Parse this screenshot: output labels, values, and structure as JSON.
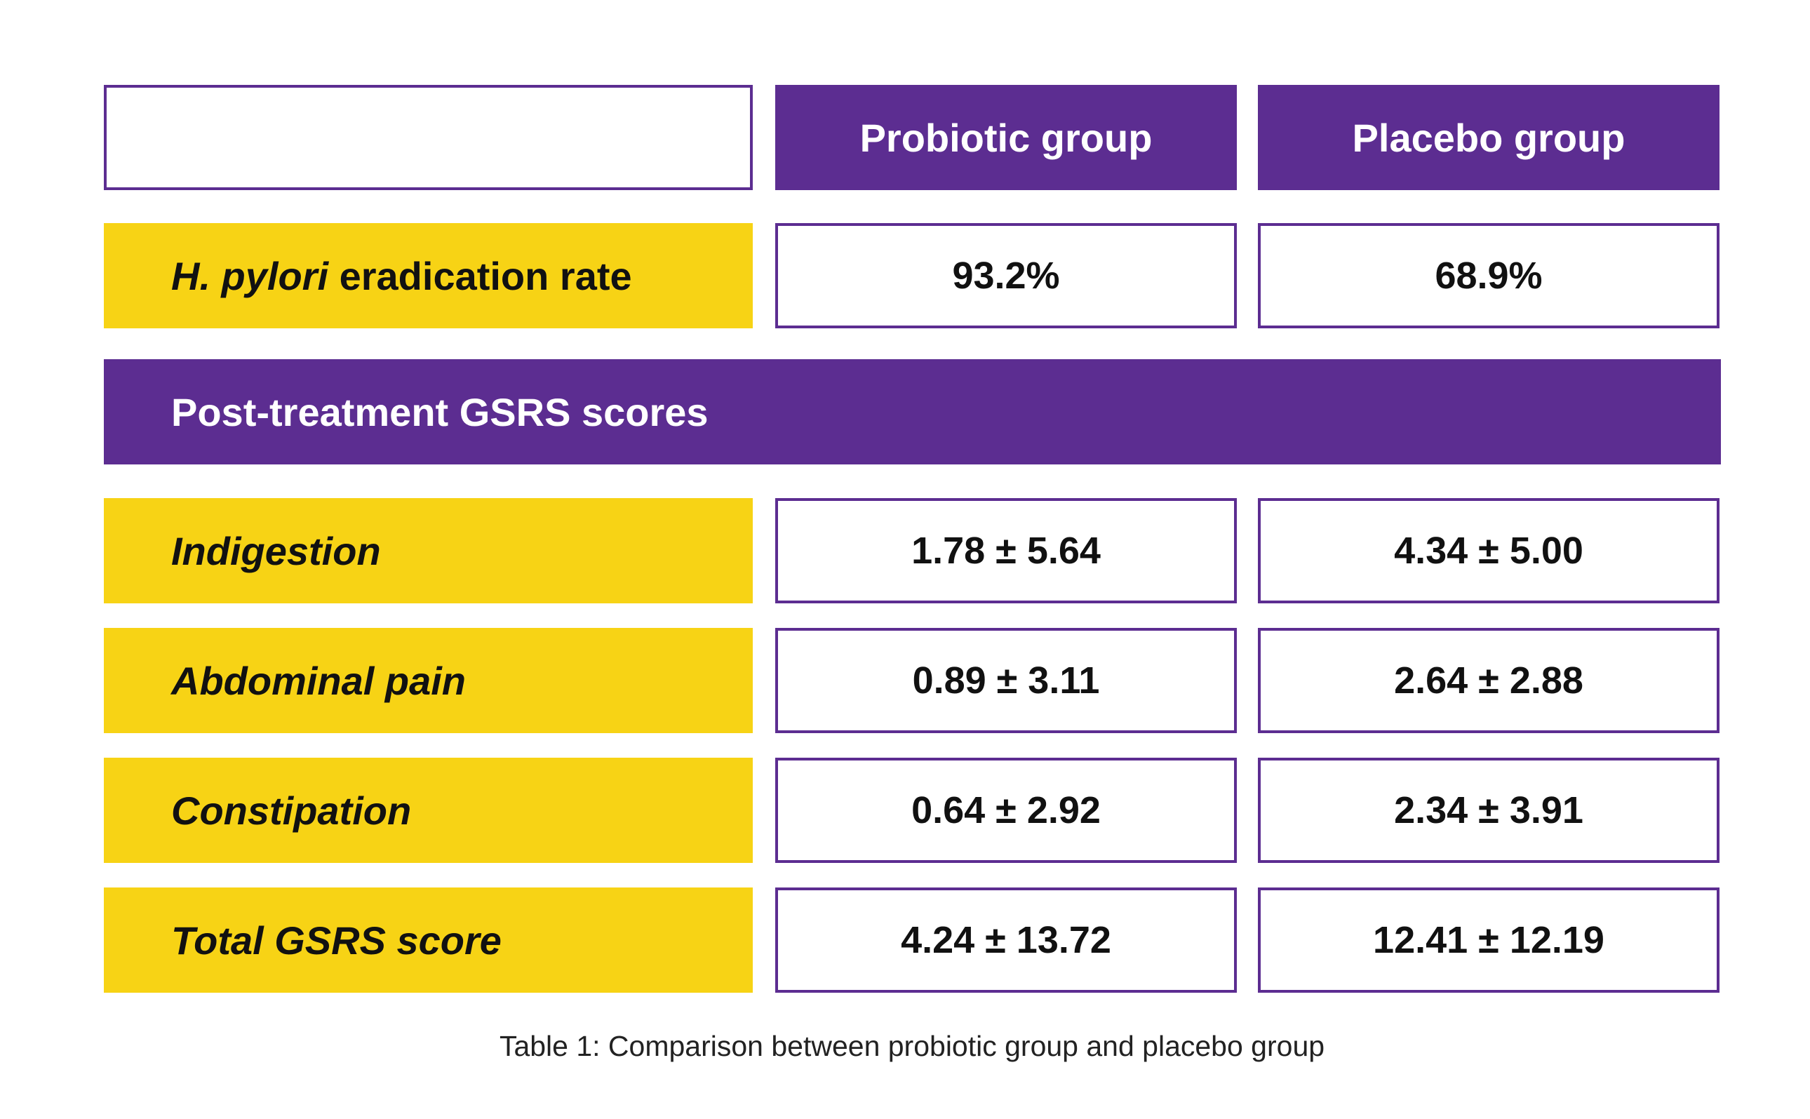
{
  "colors": {
    "purple": "#5c2d91",
    "yellow": "#f7d315",
    "white": "#ffffff",
    "text_dark": "#111111"
  },
  "chart_data": {
    "type": "table",
    "columns": [
      "Probiotic group",
      "Placebo group"
    ],
    "eradication": {
      "label_italic": "H. pylori",
      "label_rest": " eradication rate",
      "probiotic": "93.2%",
      "placebo": "68.9%"
    },
    "section_title": "Post-treatment GSRS scores",
    "gsrs_rows": [
      {
        "label": "Indigestion",
        "probiotic": "1.78 ± 5.64",
        "placebo": "4.34 ± 5.00"
      },
      {
        "label": "Abdominal pain",
        "probiotic": "0.89 ± 3.11",
        "placebo": "2.64 ± 2.88"
      },
      {
        "label": "Constipation",
        "probiotic": "0.64 ± 2.92",
        "placebo": "2.34 ± 3.91"
      },
      {
        "label": "Total GSRS score",
        "probiotic": "4.24 ± 13.72",
        "placebo": "12.41 ± 12.19"
      }
    ],
    "caption": "Table 1: Comparison between probiotic group and placebo group"
  }
}
